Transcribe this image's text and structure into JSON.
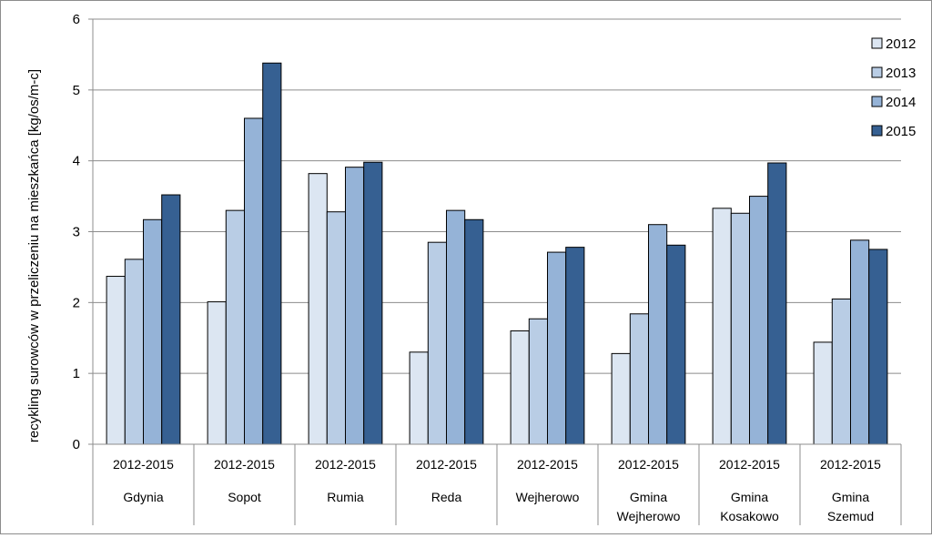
{
  "chart_data": {
    "type": "bar",
    "ylabel": "recykling surowców w przeliczeniu na mieszkańca [kg/os/m-c]",
    "ylim": [
      0,
      6
    ],
    "yticks": [
      0,
      1,
      2,
      3,
      4,
      5,
      6
    ],
    "grid": true,
    "legend_position": "top-right",
    "categories": [
      {
        "period": "2012-2015",
        "name": [
          "Gdynia"
        ]
      },
      {
        "period": "2012-2015",
        "name": [
          "Sopot"
        ]
      },
      {
        "period": "2012-2015",
        "name": [
          "Rumia"
        ]
      },
      {
        "period": "2012-2015",
        "name": [
          "Reda"
        ]
      },
      {
        "period": "2012-2015",
        "name": [
          "Wejherowo"
        ]
      },
      {
        "period": "2012-2015",
        "name": [
          "Gmina",
          "Wejherowo"
        ]
      },
      {
        "period": "2012-2015",
        "name": [
          "Gmina",
          "Kosakowo"
        ]
      },
      {
        "period": "2012-2015",
        "name": [
          "Gmina",
          "Szemud"
        ]
      }
    ],
    "series": [
      {
        "name": "2012",
        "color": "#dce6f2",
        "values": [
          2.37,
          2.01,
          3.82,
          1.3,
          1.6,
          1.28,
          3.33,
          1.44
        ]
      },
      {
        "name": "2013",
        "color": "#b9cde5",
        "values": [
          2.61,
          3.3,
          3.28,
          2.85,
          1.77,
          1.84,
          3.26,
          2.05
        ]
      },
      {
        "name": "2014",
        "color": "#95b3d7",
        "values": [
          3.17,
          4.6,
          3.91,
          3.3,
          2.71,
          3.1,
          3.5,
          2.88
        ]
      },
      {
        "name": "2015",
        "color": "#366092",
        "values": [
          3.52,
          5.38,
          3.98,
          3.17,
          2.78,
          2.81,
          3.97,
          2.75
        ]
      }
    ]
  }
}
